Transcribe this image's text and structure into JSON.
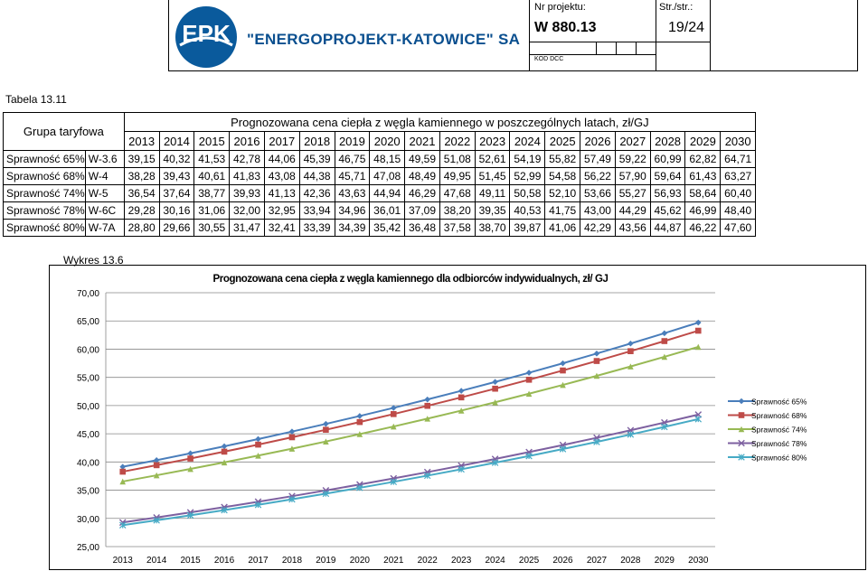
{
  "header": {
    "logo_text": "EPK",
    "company": "\"ENERGOPROJEKT-KATOWICE\" SA",
    "project_label": "Nr projektu:",
    "project_number": "W 880.13",
    "kod_label": "KOD DCC",
    "page_label": "Str./str.:",
    "page_number": "19/24"
  },
  "table": {
    "caption": "Tabela 13.11",
    "group_header": "Grupa taryfowa",
    "price_header": "Prognozowana cena ciepła z węgla kamiennego w poszczególnych latach, zł/GJ",
    "years": [
      "2013",
      "2014",
      "2015",
      "2016",
      "2017",
      "2018",
      "2019",
      "2020",
      "2021",
      "2022",
      "2023",
      "2024",
      "2025",
      "2026",
      "2027",
      "2028",
      "2029",
      "2030"
    ],
    "rows": [
      {
        "label": "Sprawność 65%",
        "code": "W-3.6",
        "values": [
          "39,15",
          "40,32",
          "41,53",
          "42,78",
          "44,06",
          "45,39",
          "46,75",
          "48,15",
          "49,59",
          "51,08",
          "52,61",
          "54,19",
          "55,82",
          "57,49",
          "59,22",
          "60,99",
          "62,82",
          "64,71"
        ]
      },
      {
        "label": "Sprawność 68%",
        "code": "W-4",
        "values": [
          "38,28",
          "39,43",
          "40,61",
          "41,83",
          "43,08",
          "44,38",
          "45,71",
          "47,08",
          "48,49",
          "49,95",
          "51,45",
          "52,99",
          "54,58",
          "56,22",
          "57,90",
          "59,64",
          "61,43",
          "63,27"
        ]
      },
      {
        "label": "Sprawność 74%",
        "code": "W-5",
        "values": [
          "36,54",
          "37,64",
          "38,77",
          "39,93",
          "41,13",
          "42,36",
          "43,63",
          "44,94",
          "46,29",
          "47,68",
          "49,11",
          "50,58",
          "52,10",
          "53,66",
          "55,27",
          "56,93",
          "58,64",
          "60,40"
        ]
      },
      {
        "label": "Sprawność 78%",
        "code": "W-6C",
        "values": [
          "29,28",
          "30,16",
          "31,06",
          "32,00",
          "32,95",
          "33,94",
          "34,96",
          "36,01",
          "37,09",
          "38,20",
          "39,35",
          "40,53",
          "41,75",
          "43,00",
          "44,29",
          "45,62",
          "46,99",
          "48,40"
        ]
      },
      {
        "label": "Sprawność 80%",
        "code": "W-7A",
        "values": [
          "28,80",
          "29,66",
          "30,55",
          "31,47",
          "32,41",
          "33,39",
          "34,39",
          "35,42",
          "36,48",
          "37,58",
          "38,70",
          "39,87",
          "41,06",
          "42,29",
          "43,56",
          "44,87",
          "46,22",
          "47,60"
        ]
      }
    ]
  },
  "chart_caption": "Wykres 13.6",
  "chart_data": {
    "type": "line",
    "title": "Prognozowana cena ciepła z węgla kamiennego dla odbiorców indywidualnych, zł/ GJ",
    "xlabel": "",
    "ylabel": "",
    "x": [
      2013,
      2014,
      2015,
      2016,
      2017,
      2018,
      2019,
      2020,
      2021,
      2022,
      2023,
      2024,
      2025,
      2026,
      2027,
      2028,
      2029,
      2030
    ],
    "ylim": [
      25,
      70
    ],
    "yticks": [
      "25,00",
      "30,00",
      "35,00",
      "40,00",
      "45,00",
      "50,00",
      "55,00",
      "60,00",
      "65,00",
      "70,00"
    ],
    "grid": true,
    "legend": "right",
    "series": [
      {
        "name": "Sprawność 65%",
        "color": "#4a7ebb",
        "marker": "diamond",
        "values": [
          39.15,
          40.32,
          41.53,
          42.78,
          44.06,
          45.39,
          46.75,
          48.15,
          49.59,
          51.08,
          52.61,
          54.19,
          55.82,
          57.49,
          59.22,
          60.99,
          62.82,
          64.71
        ]
      },
      {
        "name": "Sprawność 68%",
        "color": "#be4b48",
        "marker": "square",
        "values": [
          38.28,
          39.43,
          40.61,
          41.83,
          43.08,
          44.38,
          45.71,
          47.08,
          48.49,
          49.95,
          51.45,
          52.99,
          54.58,
          56.22,
          57.9,
          59.64,
          61.43,
          63.27
        ]
      },
      {
        "name": "Sprawność 74%",
        "color": "#98b954",
        "marker": "triangle",
        "values": [
          36.54,
          37.64,
          38.77,
          39.93,
          41.13,
          42.36,
          43.63,
          44.94,
          46.29,
          47.68,
          49.11,
          50.58,
          52.1,
          53.66,
          55.27,
          56.93,
          58.64,
          60.4
        ]
      },
      {
        "name": "Sprawność 78%",
        "color": "#7d60a0",
        "marker": "x",
        "values": [
          29.28,
          30.16,
          31.06,
          32.0,
          32.95,
          33.94,
          34.96,
          36.01,
          37.09,
          38.2,
          39.35,
          40.53,
          41.75,
          43.0,
          44.29,
          45.62,
          46.99,
          48.4
        ]
      },
      {
        "name": "Sprawność 80%",
        "color": "#46aac5",
        "marker": "star",
        "values": [
          28.8,
          29.66,
          30.55,
          31.47,
          32.41,
          33.39,
          34.39,
          35.42,
          36.48,
          37.58,
          38.7,
          39.87,
          41.06,
          42.29,
          43.56,
          44.87,
          46.22,
          47.6
        ]
      }
    ]
  }
}
